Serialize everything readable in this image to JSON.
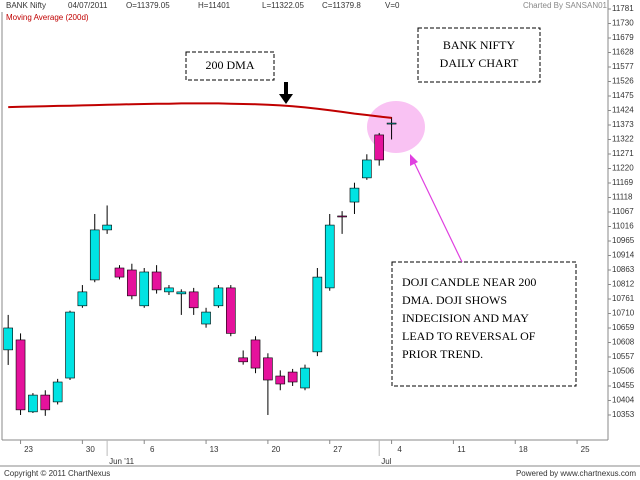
{
  "chart_data": {
    "type": "candlestick",
    "symbol": "BANK Nifty",
    "date": "04/07/2011",
    "ohlcv": [
      "O=11379.05",
      "H=11401",
      "L=11322.05",
      "C=11379.8",
      "V=0"
    ],
    "credit": "Charted By SANSAN01",
    "footer_left": "Copyright © 2011 ChartNexus",
    "footer_right": "Powered by www.chartnexus.com",
    "x": [
      0,
      1,
      2,
      3,
      4,
      5,
      6,
      7,
      8,
      9,
      10,
      11,
      12,
      13,
      14,
      15,
      16,
      17,
      18,
      19,
      20,
      21,
      22,
      23,
      24,
      25,
      26,
      27,
      28,
      29,
      30,
      31
    ],
    "open": [
      10582,
      10617,
      10364,
      10423,
      10399,
      10483,
      10737,
      10828,
      11004,
      10870,
      10863,
      10737,
      10856,
      10786,
      10779,
      10786,
      10673,
      10737,
      10800,
      10554,
      10617,
      10554,
      10490,
      10504,
      10448,
      10575,
      10800,
      11053,
      11102,
      11187,
      11338,
      11379.05
    ],
    "high": [
      10705,
      10640,
      10430,
      10440,
      10480,
      10720,
      10810,
      11060,
      11090,
      10880,
      10885,
      10870,
      10880,
      10810,
      10795,
      10800,
      10730,
      10810,
      10810,
      10580,
      10630,
      10570,
      10510,
      10515,
      10530,
      10870,
      11060,
      11070,
      11170,
      11270,
      11345,
      11401
    ],
    "low": [
      10529,
      10353,
      10360,
      10350,
      10390,
      10476,
      10730,
      10820,
      10990,
      10830,
      10760,
      10730,
      10780,
      10775,
      10705,
      10705,
      10660,
      10730,
      10630,
      10530,
      10500,
      10353,
      10440,
      10455,
      10440,
      10560,
      10790,
      10990,
      11060,
      11180,
      11230,
      11322.05
    ],
    "close": [
      10659,
      10371,
      10423,
      10371,
      10469,
      10715,
      10786,
      11004,
      11021,
      10838,
      10772,
      10856,
      10793,
      10800,
      10786,
      10730,
      10715,
      10800,
      10640,
      10540,
      10518,
      10476,
      10462,
      10469,
      10518,
      10838,
      11021,
      11050,
      11151,
      11250,
      11250,
      11379.8
    ],
    "up_color": "#00e3e3",
    "down_color": "#e5129c",
    "series": [
      {
        "name": "Moving Average (200d)",
        "color": "#c00000",
        "values": [
          11436,
          11437,
          11438,
          11439,
          11440,
          11441,
          11442,
          11443,
          11444,
          11445,
          11446,
          11447,
          11448,
          11448,
          11449,
          11449,
          11449,
          11449,
          11448,
          11447,
          11446,
          11444,
          11442,
          11439,
          11435,
          11430,
          11425,
          11419,
          11413,
          11408,
          11403,
          11398
        ]
      }
    ],
    "xlim": [
      -0.5,
      48.5
    ],
    "xticks": [
      {
        "value": 1,
        "label": "23"
      },
      {
        "value": 6,
        "label": "30"
      },
      {
        "value": 11,
        "label": "6"
      },
      {
        "value": 16,
        "label": "13"
      },
      {
        "value": 21,
        "label": "20"
      },
      {
        "value": 26,
        "label": "27"
      },
      {
        "value": 31,
        "label": "4"
      },
      {
        "value": 36,
        "label": "11"
      },
      {
        "value": 41,
        "label": "18"
      },
      {
        "value": 46,
        "label": "25"
      }
    ],
    "month_labels": [
      {
        "value": 8,
        "label": "Jun '11"
      },
      {
        "value": 30,
        "label": "Jul"
      }
    ],
    "ylim": [
      10265,
      11781
    ],
    "yticks": [
      10353,
      10404,
      10455,
      10506,
      10557,
      10608,
      10659,
      10710,
      10761,
      10812,
      10863,
      10914,
      10965,
      11016,
      11067,
      11118,
      11169,
      11220,
      11271,
      11322,
      11373,
      11424,
      11475,
      11526,
      11577,
      11628,
      11679,
      11730,
      11781
    ],
    "annotations": [
      {
        "text": [
          "200 DMA"
        ]
      },
      {
        "text": [
          "BANK NIFTY",
          "DAILY CHART"
        ]
      },
      {
        "text": [
          "DOJI CANDLE NEAR 200",
          "DMA. DOJI SHOWS",
          "INDECISION AND MAY",
          "LEAD TO REVERSAL OF",
          "PRIOR TREND."
        ]
      }
    ]
  }
}
